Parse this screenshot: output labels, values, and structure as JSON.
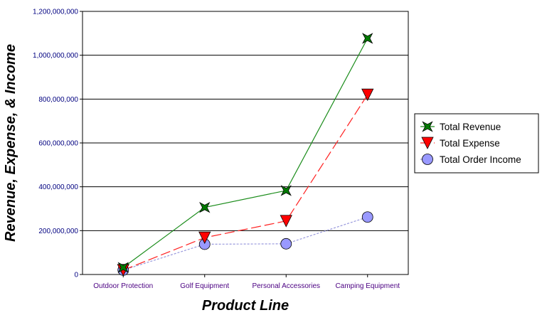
{
  "chart_data": {
    "type": "line",
    "xlabel": "Product Line",
    "ylabel": "Revenue, Expense, & Income",
    "categories": [
      "Outdoor Protection",
      "Golf Equipment",
      "Personal Accessories",
      "Camping Equipment"
    ],
    "ylim": [
      0,
      1200000000
    ],
    "yticks": [
      0,
      200000000,
      400000000,
      600000000,
      800000000,
      1000000000,
      1200000000
    ],
    "ytick_labels": [
      "0",
      "200,000,000",
      "400,000,000",
      "600,000,000",
      "800,000,000",
      "1,000,000,000",
      "1,200,000,000"
    ],
    "grid": "horizontal",
    "legend_position": "right",
    "series": [
      {
        "name": "Total Revenue",
        "values": [
          32000000,
          306000000,
          383000000,
          1077000000
        ],
        "color": "#1a8c1a",
        "marker": "star",
        "marker_color": "#007a00",
        "line_style": "solid"
      },
      {
        "name": "Total Expense",
        "values": [
          20000000,
          168000000,
          244000000,
          820000000
        ],
        "color": "#ff2020",
        "marker": "triangle-down",
        "marker_color": "#ff0000",
        "line_style": "long-dash"
      },
      {
        "name": "Total Order Income",
        "values": [
          20000000,
          138000000,
          140000000,
          262000000
        ],
        "color": "#9999dd",
        "marker": "circle",
        "marker_color": "#9999ff",
        "line_style": "dotted"
      }
    ]
  }
}
